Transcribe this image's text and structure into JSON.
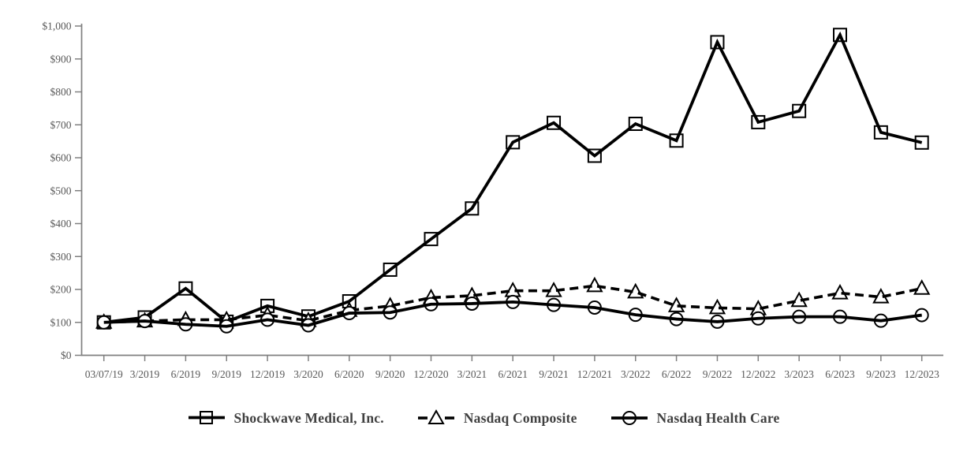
{
  "chart_data": {
    "type": "line",
    "title": "",
    "xlabel": "",
    "ylabel": "",
    "grid": false,
    "legend_position": "bottom",
    "ylim": [
      0,
      1000
    ],
    "ytick_step": 100,
    "ytick_labels": [
      "$0",
      "$100",
      "$200",
      "$300",
      "$400",
      "$500",
      "$600",
      "$700",
      "$800",
      "$900",
      "$1,000"
    ],
    "categories": [
      "03/07/19",
      "3/2019",
      "6/2019",
      "9/2019",
      "12/2019",
      "3/2020",
      "6/2020",
      "9/2020",
      "12/2020",
      "3/2021",
      "6/2021",
      "9/2021",
      "12/2021",
      "3/2022",
      "6/2022",
      "9/2022",
      "12/2022",
      "3/2023",
      "6/2023",
      "9/2023",
      "12/2023"
    ],
    "series": [
      {
        "name": "Shockwave Medical, Inc.",
        "marker": "square",
        "line_style": "solid",
        "values": [
          100,
          115,
          203,
          102,
          150,
          118,
          164,
          260,
          353,
          446,
          647,
          706,
          606,
          703,
          652,
          951,
          708,
          742,
          973,
          677,
          646
        ]
      },
      {
        "name": "Nasdaq Composite",
        "marker": "triangle",
        "line_style": "dashed",
        "values": [
          100,
          104,
          108,
          108,
          122,
          105,
          136,
          150,
          175,
          181,
          196,
          196,
          211,
          192,
          150,
          144,
          141,
          166,
          189,
          177,
          203
        ]
      },
      {
        "name": "Nasdaq Health Care",
        "marker": "circle",
        "line_style": "solid",
        "values": [
          100,
          104,
          94,
          88,
          108,
          91,
          128,
          130,
          155,
          157,
          162,
          153,
          145,
          123,
          110,
          102,
          112,
          117,
          117,
          105,
          122
        ]
      }
    ]
  },
  "colors": {
    "series_line": "#000000",
    "marker_fill": "#ffffff",
    "axis": "#808080",
    "tick_text": "#595959",
    "legend_text": "#404040",
    "background": "#ffffff"
  }
}
